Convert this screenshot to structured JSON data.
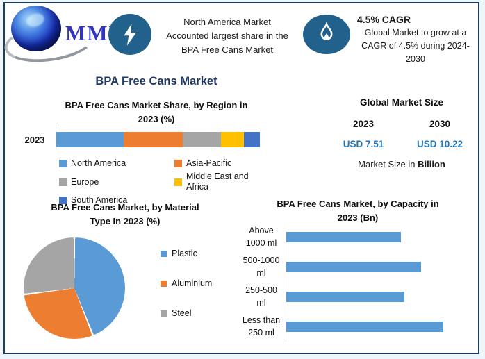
{
  "brand": {
    "logo_text": "MMR"
  },
  "header": {
    "highlight": "North America Market\nAccounted largest share in the\nBPA Free Cans Market",
    "cagr_title": "4.5% CAGR",
    "cagr_body": "Global Market to grow at a\nCAGR of 4.5% during 2024-\n2030"
  },
  "main_title": "BPA Free Cans Market",
  "global_market_size": {
    "title": "Global Market Size",
    "year_left": "2023",
    "year_right": "2030",
    "value_left": "USD 7.51",
    "value_right": "USD 10.22",
    "note_prefix": "Market Size in ",
    "note_bold": "Billion"
  },
  "colors": {
    "accent_navy": "#1F3864",
    "value_blue": "#1B75BC",
    "icon_blue": "#21618C",
    "frame_border": "#1F3C5C",
    "axis_gray": "#B9B9B9"
  },
  "chart_data": [
    {
      "type": "bar",
      "subtype": "stacked-horizontal",
      "title": "BPA Free Cans Market Share, by Region in\n2023 (%)",
      "categories": [
        "2023"
      ],
      "unit": "%",
      "xlim": [
        0,
        100
      ],
      "legend_position": "bottom",
      "series": [
        {
          "name": "North America",
          "value": 33,
          "color": "#5B9BD5"
        },
        {
          "name": "Asia-Pacific",
          "value": 29,
          "color": "#ED7D31"
        },
        {
          "name": "Europe",
          "value": 19,
          "color": "#A5A5A5"
        },
        {
          "name": "Middle East and Africa",
          "value": 11,
          "color": "#FFC000"
        },
        {
          "name": "South America",
          "value": 8,
          "color": "#4472C4"
        }
      ]
    },
    {
      "type": "pie",
      "title": "BPA Free Cans Market, by Material\nType In 2023 (%)",
      "start_angle_deg": 0,
      "direction": "clockwise",
      "legend_position": "right",
      "slices": [
        {
          "name": "Plastic",
          "value": 44,
          "color": "#5B9BD5"
        },
        {
          "name": "Aluminium",
          "value": 29,
          "color": "#ED7D31"
        },
        {
          "name": "Steel",
          "value": 27,
          "color": "#A5A5A5"
        }
      ]
    },
    {
      "type": "bar",
      "subtype": "horizontal",
      "title": "BPA Free Cans Market, by Capacity in\n2023 (Bn)",
      "categories": [
        "Above\n1000 ml",
        "500-1000\nml",
        "250-500\nml",
        "Less than\n250 ml"
      ],
      "values": [
        1.64,
        1.93,
        1.69,
        2.25
      ],
      "unit": "Bn",
      "xlim": [
        0,
        2.5
      ],
      "bar_color": "#5B9BD5",
      "grid": false
    }
  ]
}
